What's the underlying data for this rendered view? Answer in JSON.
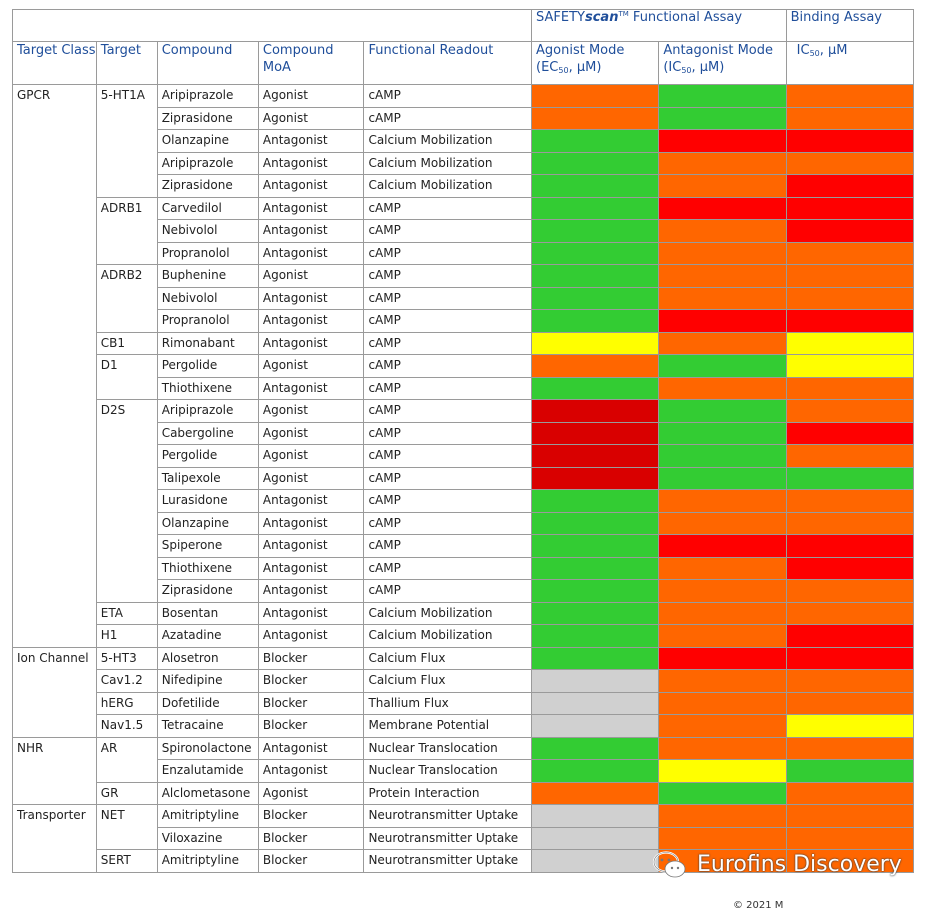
{
  "header": {
    "functional_assay_prefix": "SAFETY",
    "functional_assay_scan": "scan",
    "functional_assay_tm": "TM",
    "functional_assay_suffix": " Functional Assay",
    "binding_assay": "Binding Assay"
  },
  "columns": {
    "target_class": "Target Class",
    "target": "Target",
    "compound": "Compound",
    "compound_moa_1": "Compound",
    "compound_moa_2": "MoA",
    "functional_readout": "Functional Readout",
    "agonist_mode_1": "Agonist Mode",
    "agonist_mode_2a": "(EC",
    "agonist_mode_sub": "50",
    "agonist_mode_2b": ", µM)",
    "antagonist_mode_1": "Antagonist Mode",
    "antagonist_mode_2a": "(IC",
    "antagonist_mode_sub": "50",
    "antagonist_mode_2b": ", µM)",
    "binding_1a": "IC",
    "binding_sub": "50",
    "binding_1b": ", µM"
  },
  "colors": {
    "orange": "#ff6600",
    "green": "#33cc33",
    "red": "#ff0000",
    "darkred": "#d90000",
    "yellow": "#ffff00",
    "gray": "#d0d0d0"
  },
  "rows": [
    {
      "cls": "GPCR",
      "tgt": "5-HT1A",
      "cmp": "Aripiprazole",
      "moa": "Agonist",
      "read": "cAMP",
      "ago": "orange",
      "ant": "green",
      "bind": "orange"
    },
    {
      "cls": "",
      "tgt": "",
      "cmp": "Ziprasidone",
      "moa": "Agonist",
      "read": "cAMP",
      "ago": "orange",
      "ant": "green",
      "bind": "orange"
    },
    {
      "cls": "",
      "tgt": "",
      "cmp": "Olanzapine",
      "moa": "Antagonist",
      "read": "Calcium Mobilization",
      "ago": "green",
      "ant": "red",
      "bind": "red"
    },
    {
      "cls": "",
      "tgt": "",
      "cmp": "Aripiprazole",
      "moa": "Antagonist",
      "read": "Calcium Mobilization",
      "ago": "green",
      "ant": "orange",
      "bind": "orange"
    },
    {
      "cls": "",
      "tgt": "",
      "cmp": "Ziprasidone",
      "moa": "Antagonist",
      "read": "Calcium Mobilization",
      "ago": "green",
      "ant": "orange",
      "bind": "red"
    },
    {
      "cls": "",
      "tgt": "ADRB1",
      "cmp": "Carvedilol",
      "moa": "Antagonist",
      "read": "cAMP",
      "ago": "green",
      "ant": "red",
      "bind": "red"
    },
    {
      "cls": "",
      "tgt": "",
      "cmp": "Nebivolol",
      "moa": "Antagonist",
      "read": "cAMP",
      "ago": "green",
      "ant": "orange",
      "bind": "red"
    },
    {
      "cls": "",
      "tgt": "",
      "cmp": "Propranolol",
      "moa": "Antagonist",
      "read": "cAMP",
      "ago": "green",
      "ant": "orange",
      "bind": "orange"
    },
    {
      "cls": "",
      "tgt": "ADRB2",
      "cmp": "Buphenine",
      "moa": "Agonist",
      "read": "cAMP",
      "ago": "green",
      "ant": "orange",
      "bind": "orange"
    },
    {
      "cls": "",
      "tgt": "",
      "cmp": "Nebivolol",
      "moa": "Antagonist",
      "read": "cAMP",
      "ago": "green",
      "ant": "orange",
      "bind": "orange"
    },
    {
      "cls": "",
      "tgt": "",
      "cmp": "Propranolol",
      "moa": "Antagonist",
      "read": "cAMP",
      "ago": "green",
      "ant": "red",
      "bind": "red"
    },
    {
      "cls": "",
      "tgt": "CB1",
      "cmp": "Rimonabant",
      "moa": "Antagonist",
      "read": "cAMP",
      "ago": "yellow",
      "ant": "orange",
      "bind": "yellow"
    },
    {
      "cls": "",
      "tgt": "D1",
      "cmp": "Pergolide",
      "moa": "Agonist",
      "read": "cAMP",
      "ago": "orange",
      "ant": "green",
      "bind": "yellow"
    },
    {
      "cls": "",
      "tgt": "",
      "cmp": "Thiothixene",
      "moa": "Antagonist",
      "read": "cAMP",
      "ago": "green",
      "ant": "orange",
      "bind": "orange"
    },
    {
      "cls": "",
      "tgt": "D2S",
      "cmp": "Aripiprazole",
      "moa": "Agonist",
      "read": "cAMP",
      "ago": "darkred",
      "ant": "green",
      "bind": "orange"
    },
    {
      "cls": "",
      "tgt": "",
      "cmp": "Cabergoline",
      "moa": "Agonist",
      "read": "cAMP",
      "ago": "darkred",
      "ant": "green",
      "bind": "red"
    },
    {
      "cls": "",
      "tgt": "",
      "cmp": "Pergolide",
      "moa": "Agonist",
      "read": "cAMP",
      "ago": "darkred",
      "ant": "green",
      "bind": "orange"
    },
    {
      "cls": "",
      "tgt": "",
      "cmp": "Talipexole",
      "moa": "Agonist",
      "read": "cAMP",
      "ago": "darkred",
      "ant": "green",
      "bind": "green"
    },
    {
      "cls": "",
      "tgt": "",
      "cmp": "Lurasidone",
      "moa": "Antagonist",
      "read": "cAMP",
      "ago": "green",
      "ant": "orange",
      "bind": "orange"
    },
    {
      "cls": "",
      "tgt": "",
      "cmp": "Olanzapine",
      "moa": "Antagonist",
      "read": "cAMP",
      "ago": "green",
      "ant": "orange",
      "bind": "orange"
    },
    {
      "cls": "",
      "tgt": "",
      "cmp": "Spiperone",
      "moa": "Antagonist",
      "read": "cAMP",
      "ago": "green",
      "ant": "red",
      "bind": "red"
    },
    {
      "cls": "",
      "tgt": "",
      "cmp": "Thiothixene",
      "moa": "Antagonist",
      "read": "cAMP",
      "ago": "green",
      "ant": "orange",
      "bind": "red"
    },
    {
      "cls": "",
      "tgt": "",
      "cmp": "Ziprasidone",
      "moa": "Antagonist",
      "read": "cAMP",
      "ago": "green",
      "ant": "orange",
      "bind": "orange"
    },
    {
      "cls": "",
      "tgt": "ETA",
      "cmp": "Bosentan",
      "moa": "Antagonist",
      "read": "Calcium Mobilization",
      "ago": "green",
      "ant": "orange",
      "bind": "orange"
    },
    {
      "cls": "",
      "tgt": "H1",
      "cmp": "Azatadine",
      "moa": "Antagonist",
      "read": "Calcium Mobilization",
      "ago": "green",
      "ant": "orange",
      "bind": "red"
    },
    {
      "cls": "Ion Channel",
      "tgt": "5-HT3",
      "cmp": "Alosetron",
      "moa": "Blocker",
      "read": "Calcium Flux",
      "ago": "green",
      "ant": "red",
      "bind": "red"
    },
    {
      "cls": "",
      "tgt": "Cav1.2",
      "cmp": "Nifedipine",
      "moa": "Blocker",
      "read": "Calcium Flux",
      "ago": "gray",
      "ant": "orange",
      "bind": "orange"
    },
    {
      "cls": "",
      "tgt": "hERG",
      "cmp": "Dofetilide",
      "moa": "Blocker",
      "read": "Thallium Flux",
      "ago": "gray",
      "ant": "orange",
      "bind": "orange"
    },
    {
      "cls": "",
      "tgt": "Nav1.5",
      "cmp": "Tetracaine",
      "moa": "Blocker",
      "read": "Membrane Potential",
      "ago": "gray",
      "ant": "orange",
      "bind": "yellow"
    },
    {
      "cls": "NHR",
      "tgt": "AR",
      "cmp": "Spironolactone",
      "moa": "Antagonist",
      "read": "Nuclear Translocation",
      "ago": "green",
      "ant": "orange",
      "bind": "orange"
    },
    {
      "cls": "",
      "tgt": "",
      "cmp": "Enzalutamide",
      "moa": "Antagonist",
      "read": "Nuclear Translocation",
      "ago": "green",
      "ant": "yellow",
      "bind": "green"
    },
    {
      "cls": "",
      "tgt": "GR",
      "cmp": "Alclometasone",
      "moa": "Agonist",
      "read": "Protein Interaction",
      "ago": "orange",
      "ant": "green",
      "bind": "orange"
    },
    {
      "cls": "Transporter",
      "tgt": "NET",
      "cmp": "Amitriptyline",
      "moa": "Blocker",
      "read": "Neurotransmitter Uptake",
      "ago": "gray",
      "ant": "orange",
      "bind": "orange"
    },
    {
      "cls": "",
      "tgt": "",
      "cmp": "Viloxazine",
      "moa": "Blocker",
      "read": "Neurotransmitter Uptake",
      "ago": "gray",
      "ant": "orange",
      "bind": "orange"
    },
    {
      "cls": "",
      "tgt": "SERT",
      "cmp": "Amitriptyline",
      "moa": "Blocker",
      "read": "Neurotransmitter Uptake",
      "ago": "gray",
      "ant": "orange",
      "bind": "orange"
    }
  ],
  "watermark": {
    "text": "Eurofins Discovery",
    "icon": "wechat-icon"
  },
  "footer": {
    "copyright": "© 2021 M"
  }
}
